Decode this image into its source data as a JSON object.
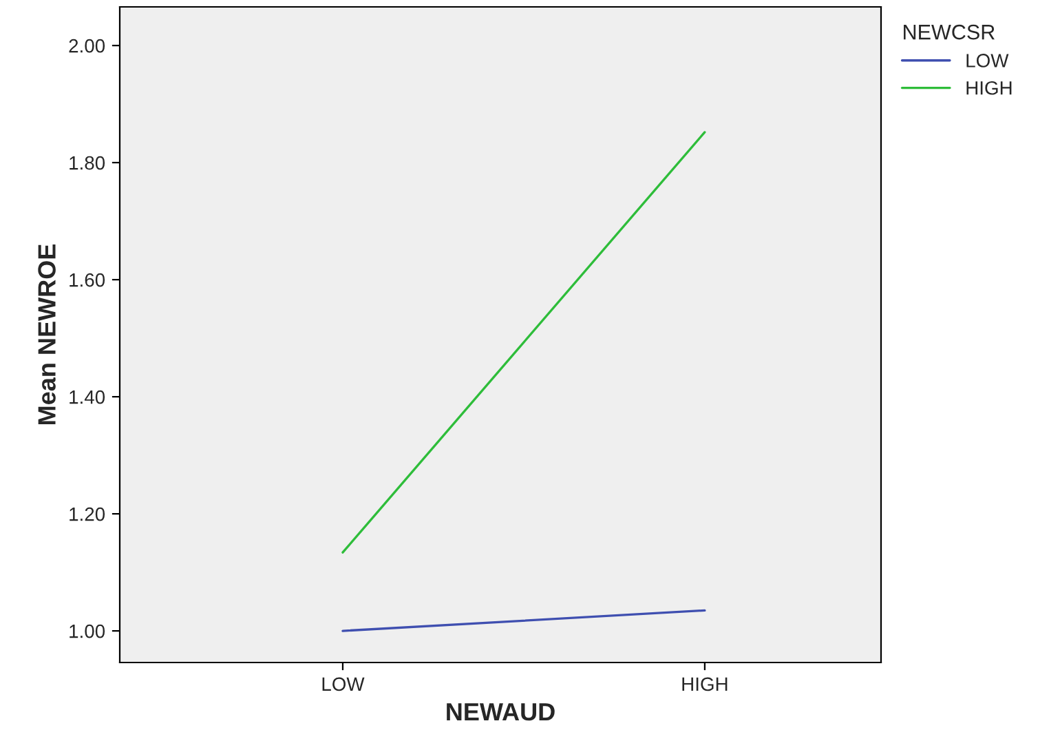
{
  "chart_data": {
    "type": "line",
    "xlabel": "NEWAUD",
    "ylabel": "Mean NEWROE",
    "legend_title": "NEWCSR",
    "categories": [
      "LOW",
      "HIGH"
    ],
    "series": [
      {
        "name": "LOW",
        "color": "#3f4fb0",
        "values": [
          1.0,
          1.035
        ]
      },
      {
        "name": "HIGH",
        "color": "#2ebd3a",
        "values": [
          1.134,
          1.852
        ]
      }
    ],
    "ylim": [
      0.946,
      2.066
    ],
    "yticks": [
      {
        "value": 1.0,
        "label": "1.00"
      },
      {
        "value": 1.2,
        "label": "1.20"
      },
      {
        "value": 1.4,
        "label": "1.40"
      },
      {
        "value": 1.6,
        "label": "1.60"
      },
      {
        "value": 1.8,
        "label": "1.80"
      },
      {
        "value": 2.0,
        "label": "2.00"
      }
    ],
    "grid": false,
    "legend": "top right",
    "marker": "none",
    "line_style": "solid"
  }
}
